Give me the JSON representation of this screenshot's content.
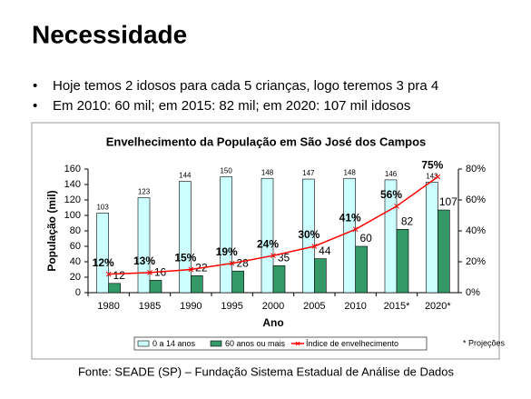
{
  "slide": {
    "title": "Necessidade",
    "bullets": [
      "Hoje temos 2 idosos para cada 5 crianças, logo teremos 3 pra 4",
      "Em 2010: 60 mil; em 2015: 82 mil; em 2020: 107 mil idosos"
    ],
    "note": "* Projeções",
    "source": "Fonte: SEADE (SP) – Fundação Sistema Estadual de Análise de Dados"
  },
  "chart_data": {
    "type": "bar-line",
    "title": "Envelhecimento da População em São José dos Campos",
    "x_label": "Ano",
    "y_label": "População (mil)",
    "categories": [
      "1980",
      "1985",
      "1990",
      "1995",
      "2000",
      "2005",
      "2010",
      "2015*",
      "2020*"
    ],
    "series": [
      {
        "name": "0 a 14 anos",
        "color": "#ccffff",
        "type": "bar",
        "values": [
          103,
          123,
          144,
          150,
          148,
          147,
          148,
          146,
          143
        ]
      },
      {
        "name": "60 anos ou mais",
        "color": "#339966",
        "type": "bar",
        "values": [
          12,
          16,
          22,
          28,
          35,
          44,
          60,
          82,
          107
        ]
      },
      {
        "name": "Índice de envelhecimento",
        "color": "#ff0000",
        "type": "line",
        "axis": "y2",
        "values": [
          12,
          13,
          15,
          19,
          24,
          30,
          41,
          56,
          75
        ],
        "value_labels": [
          "12%",
          "13%",
          "15%",
          "19%",
          "24%",
          "30%",
          "41%",
          "56%",
          "75%"
        ]
      }
    ],
    "ylim": [
      0,
      160
    ],
    "yticks": [
      0,
      20,
      40,
      60,
      80,
      100,
      120,
      140,
      160
    ],
    "y2lim": [
      0,
      80
    ],
    "y2ticks": [
      {
        "value": 0,
        "label": "0%"
      },
      {
        "value": 20,
        "label": "20%"
      },
      {
        "value": 40,
        "label": "40%"
      },
      {
        "value": 60,
        "label": "60%"
      },
      {
        "value": 80,
        "label": "80%"
      }
    ],
    "grid": false,
    "legend": "bottom"
  }
}
